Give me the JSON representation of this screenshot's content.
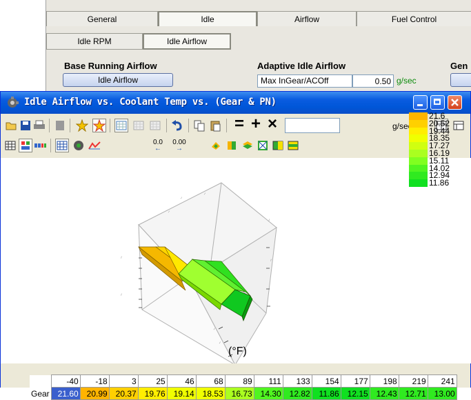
{
  "main_tabs": [
    "General",
    "Idle",
    "Airflow",
    "Fuel Control"
  ],
  "selected_main_tab": "Idle",
  "sub_tabs": [
    "Idle RPM",
    "Idle Airflow"
  ],
  "sections": {
    "base_running": {
      "title": "Base Running Airflow",
      "button": "Idle Airflow"
    },
    "adaptive": {
      "title": "Adaptive Idle Airflow",
      "field_label": "Max InGear/ACOff",
      "field_value": "0.50",
      "unit": "g/sec"
    },
    "right_partial": {
      "title": "Gen"
    }
  },
  "window": {
    "title": "Idle Airflow vs. Coolant Temp vs. (Gear & PN)",
    "input_unit": "g/sec",
    "input_value": "",
    "toolbar_labels": {
      "equals": "=",
      "plus": "+",
      "times": "×",
      "zero_a": "0.0",
      "zero_b": "0.00"
    }
  },
  "axis_unit_label": "(°F)",
  "legend": [
    "21.6",
    "20.52",
    "19.44",
    "18.35",
    "17.27",
    "16.19",
    "15.11",
    "14.02",
    "12.94",
    "11.86"
  ],
  "legend_colors": [
    "#ffb400",
    "#ffd000",
    "#ffee00",
    "#f0ff00",
    "#d0ff10",
    "#aaff20",
    "#80ff20",
    "#50f520",
    "#30ea20",
    "#10e020"
  ],
  "table": {
    "row_label": "Gear",
    "headers": [
      "-40",
      "-18",
      "3",
      "25",
      "46",
      "68",
      "89",
      "111",
      "133",
      "154",
      "177",
      "198",
      "219",
      "241"
    ],
    "values": [
      "21.60",
      "20.99",
      "20.37",
      "19.76",
      "19.14",
      "18.53",
      "16.73",
      "14.30",
      "12.82",
      "11.86",
      "12.15",
      "12.43",
      "12.71",
      "13.00"
    ],
    "colors": [
      "#3a5fcd",
      "#ffb400",
      "#ffd000",
      "#ffee00",
      "#f0ff00",
      "#f0ff00",
      "#aaff20",
      "#50f520",
      "#30ea20",
      "#10e020",
      "#10e020",
      "#30ea20",
      "#30ea20",
      "#30ea20"
    ],
    "selected_index": 0
  },
  "chart_data": {
    "type": "surface",
    "x": [
      "-40",
      "-18",
      "3",
      "25",
      "46",
      "68",
      "89",
      "111",
      "133",
      "154",
      "177",
      "198",
      "219",
      "241"
    ],
    "series": [
      {
        "values": [
          21.6,
          20.99,
          20.37,
          19.76,
          19.14,
          18.53,
          16.73,
          14.3,
          12.82,
          11.86,
          12.15,
          12.43,
          12.71,
          13.0
        ]
      }
    ],
    "xlabel": "(°F)"
  }
}
